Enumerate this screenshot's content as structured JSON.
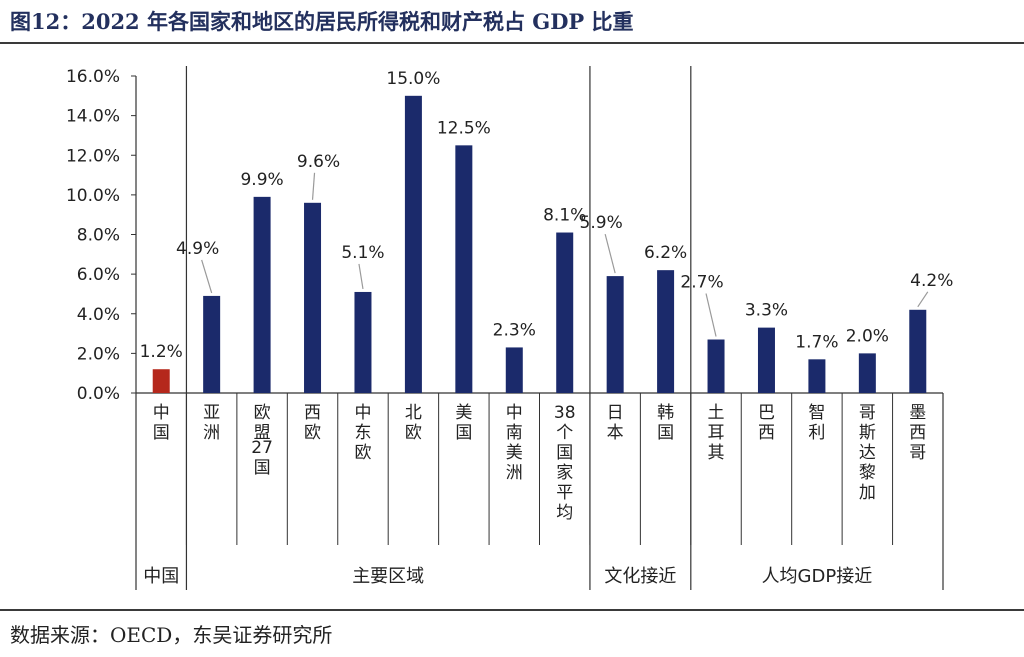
{
  "title": "图12：2022 年各国家和地区的居民所得税和财产税占 GDP 比重",
  "source": "数据来源：OECD，东吴证券研究所",
  "colors": {
    "china": "#b5281c",
    "other": "#1b2a6b",
    "text": "#222222",
    "axis": "#333333"
  },
  "chart_data": {
    "type": "bar",
    "title": "2022 年各国家和地区的居民所得税和财产税占 GDP 比重",
    "xlabel": "",
    "ylabel": "",
    "ylim": [
      0,
      16
    ],
    "yticks": [
      "0.0%",
      "2.0%",
      "4.0%",
      "6.0%",
      "8.0%",
      "10.0%",
      "12.0%",
      "14.0%",
      "16.0%"
    ],
    "categories": [
      "中国",
      "亚洲",
      "欧盟27国",
      "西欧",
      "中东欧",
      "北欧",
      "美国",
      "中南美洲",
      "38个国家平均",
      "日本",
      "韩国",
      "土耳其",
      "巴西",
      "智利",
      "哥斯达黎加",
      "墨西哥"
    ],
    "values": [
      1.2,
      4.9,
      9.9,
      9.6,
      5.1,
      15.0,
      12.5,
      2.3,
      8.1,
      5.9,
      6.2,
      2.7,
      3.3,
      1.7,
      2.0,
      4.2
    ],
    "value_labels": [
      "1.2%",
      "4.9%",
      "9.9%",
      "9.6%",
      "5.1%",
      "15.0%",
      "12.5%",
      "2.3%",
      "8.1%",
      "5.9%",
      "6.2%",
      "2.7%",
      "3.3%",
      "1.7%",
      "2.0%",
      "4.2%"
    ],
    "groups": [
      {
        "label": "中国",
        "start": 0,
        "end": 0
      },
      {
        "label": "主要区域",
        "start": 1,
        "end": 8
      },
      {
        "label": "文化接近",
        "start": 9,
        "end": 10
      },
      {
        "label": "人均GDP接近",
        "start": 11,
        "end": 15
      }
    ],
    "legend": "none",
    "grid": false
  }
}
